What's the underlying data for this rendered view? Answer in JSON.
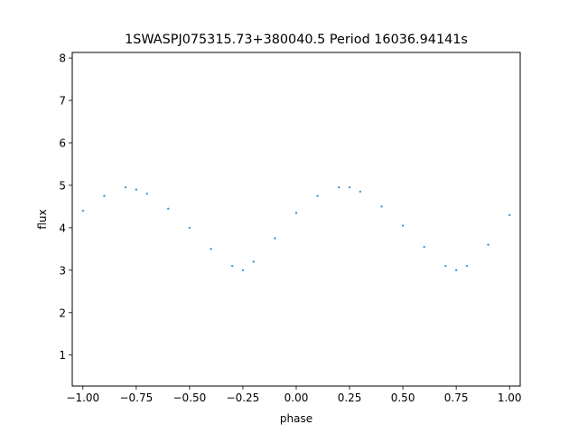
{
  "chart_data": {
    "type": "scatter",
    "title": "1SWASPJ075315.73+380040.5 Period 16036.94141s",
    "xlabel": "phase",
    "ylabel": "flux",
    "xlim": [
      -1.05,
      1.05
    ],
    "ylim": [
      0.27,
      8.13
    ],
    "x_ticks": [
      -1.0,
      -0.75,
      -0.5,
      -0.25,
      0.0,
      0.25,
      0.5,
      0.75,
      1.0
    ],
    "x_tick_labels": [
      "−1.00",
      "−0.75",
      "−0.50",
      "−0.25",
      "0.00",
      "0.25",
      "0.50",
      "0.75",
      "1.00"
    ],
    "y_ticks": [
      1,
      2,
      3,
      4,
      5,
      6,
      7,
      8
    ],
    "y_tick_labels": [
      "1",
      "2",
      "3",
      "4",
      "5",
      "6",
      "7",
      "8"
    ],
    "grid": false,
    "marker_color": "#1f77b4",
    "series": [
      {
        "x": [
          -1.0,
          -0.9,
          -0.8,
          -0.75,
          -0.7,
          -0.6,
          -0.5,
          -0.4,
          -0.3,
          -0.25,
          -0.2,
          -0.1,
          0.0,
          0.1,
          0.2,
          0.25,
          0.3,
          0.4,
          0.5,
          0.6,
          0.7,
          0.75,
          0.8,
          0.9,
          1.0
        ],
        "y": [
          4.4,
          4.75,
          4.95,
          4.9,
          4.8,
          4.45,
          4.0,
          3.5,
          3.1,
          3.0,
          3.2,
          3.75,
          4.35,
          4.75,
          4.95,
          4.95,
          4.85,
          4.5,
          4.05,
          3.55,
          3.1,
          3.0,
          3.1,
          3.6,
          4.3
        ]
      }
    ]
  }
}
